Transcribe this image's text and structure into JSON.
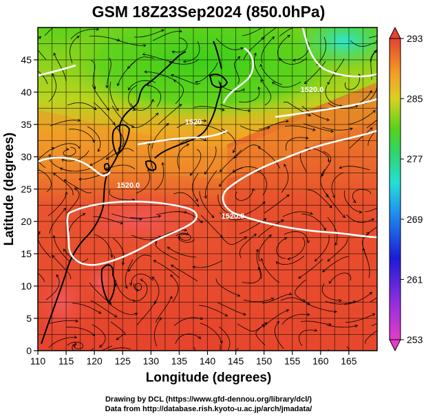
{
  "title": "GSM 18Z23Sep2024 (850.0hPa)",
  "xlabel": "Longitude (degrees)",
  "ylabel": "Latitude  (degrees)",
  "x_ticks": [
    "110",
    "115",
    "120",
    "125",
    "130",
    "135",
    "140",
    "145",
    "150",
    "155",
    "160",
    "165"
  ],
  "y_ticks": [
    "0",
    "5",
    "10",
    "15",
    "20",
    "25",
    "30",
    "35",
    "40",
    "45"
  ],
  "colorbar": {
    "ticks": [
      "293",
      "285",
      "277",
      "269",
      "261",
      "253"
    ],
    "min": 253,
    "max": 293
  },
  "contour_labels": [
    {
      "text": "1520.0",
      "lon": 126,
      "lat": 25.2
    },
    {
      "text": "1520.0",
      "lon": 144.5,
      "lat": 20.4
    },
    {
      "text": "1520",
      "lon": 137.5,
      "lat": 35.0
    },
    {
      "text": "1520.0",
      "lon": 158.5,
      "lat": 40.0
    }
  ],
  "credits": {
    "line1": "Drawing by DCL (https://www.gfd-dennou.org/library/dcl/)",
    "line2": "Data from http://database.rish.kyoto-u.ac.jp/arch/jmadata/"
  },
  "map": {
    "lon_range": [
      110,
      170
    ],
    "lat_range": [
      0,
      50
    ],
    "colors": {
      "warm": "#e8412c",
      "orange": "#f29a2a",
      "yellow": "#d8d21e",
      "green": "#54d21c",
      "cyan": "#2ae4c8",
      "contour": "#ffffff",
      "streamline": "#000000"
    }
  }
}
